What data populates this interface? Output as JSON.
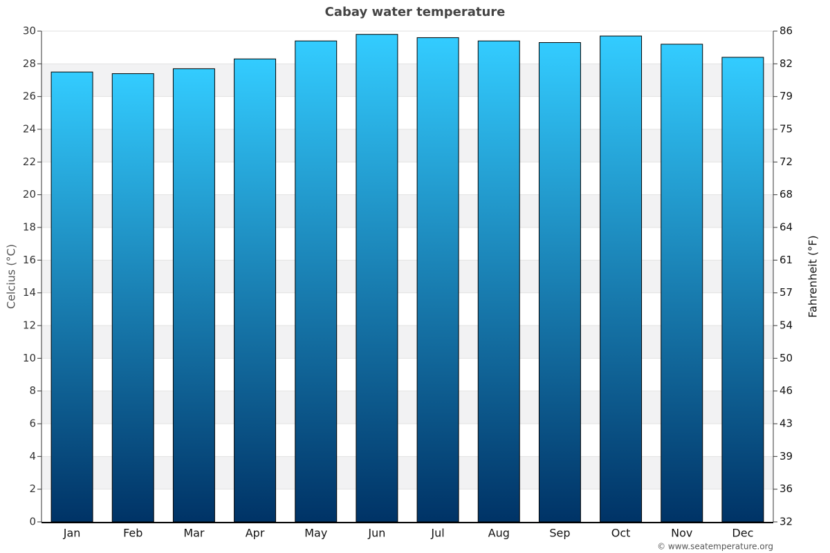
{
  "chart_data": {
    "type": "bar",
    "title": "Cabay water temperature",
    "categories": [
      "Jan",
      "Feb",
      "Mar",
      "Apr",
      "May",
      "Jun",
      "Jul",
      "Aug",
      "Sep",
      "Oct",
      "Nov",
      "Dec"
    ],
    "values": [
      27.5,
      27.4,
      27.7,
      28.3,
      29.4,
      29.8,
      29.6,
      29.4,
      29.3,
      29.7,
      29.2,
      28.4
    ],
    "color_top": "#33ccff",
    "color_bottom": "#003366",
    "ylabel": "Celcius (°C)",
    "y2label": "Fahrenheit (°F)",
    "ylim": [
      0,
      30
    ],
    "yticks": [
      0,
      2,
      4,
      6,
      8,
      10,
      12,
      14,
      16,
      18,
      20,
      22,
      24,
      26,
      28,
      30
    ],
    "y2lim": [
      32,
      86
    ],
    "y2ticks": [
      32,
      {
        "value": 35.6,
        "label": "36"
      },
      {
        "value": 39.2,
        "label": "39"
      },
      {
        "value": 42.8,
        "label": "43"
      },
      {
        "value": 46.4,
        "label": "46"
      },
      50,
      {
        "value": 53.6,
        "label": "54"
      },
      {
        "value": 57.2,
        "label": "57"
      },
      {
        "value": 60.8,
        "label": "61"
      },
      {
        "value": 64.4,
        "label": "64"
      },
      68,
      {
        "value": 71.6,
        "label": "72"
      },
      {
        "value": 75.2,
        "label": "75"
      },
      {
        "value": 78.8,
        "label": "79"
      },
      {
        "value": 82.4,
        "label": "82"
      },
      86
    ],
    "grid": true,
    "credit": "© www.seatemperature.org"
  }
}
